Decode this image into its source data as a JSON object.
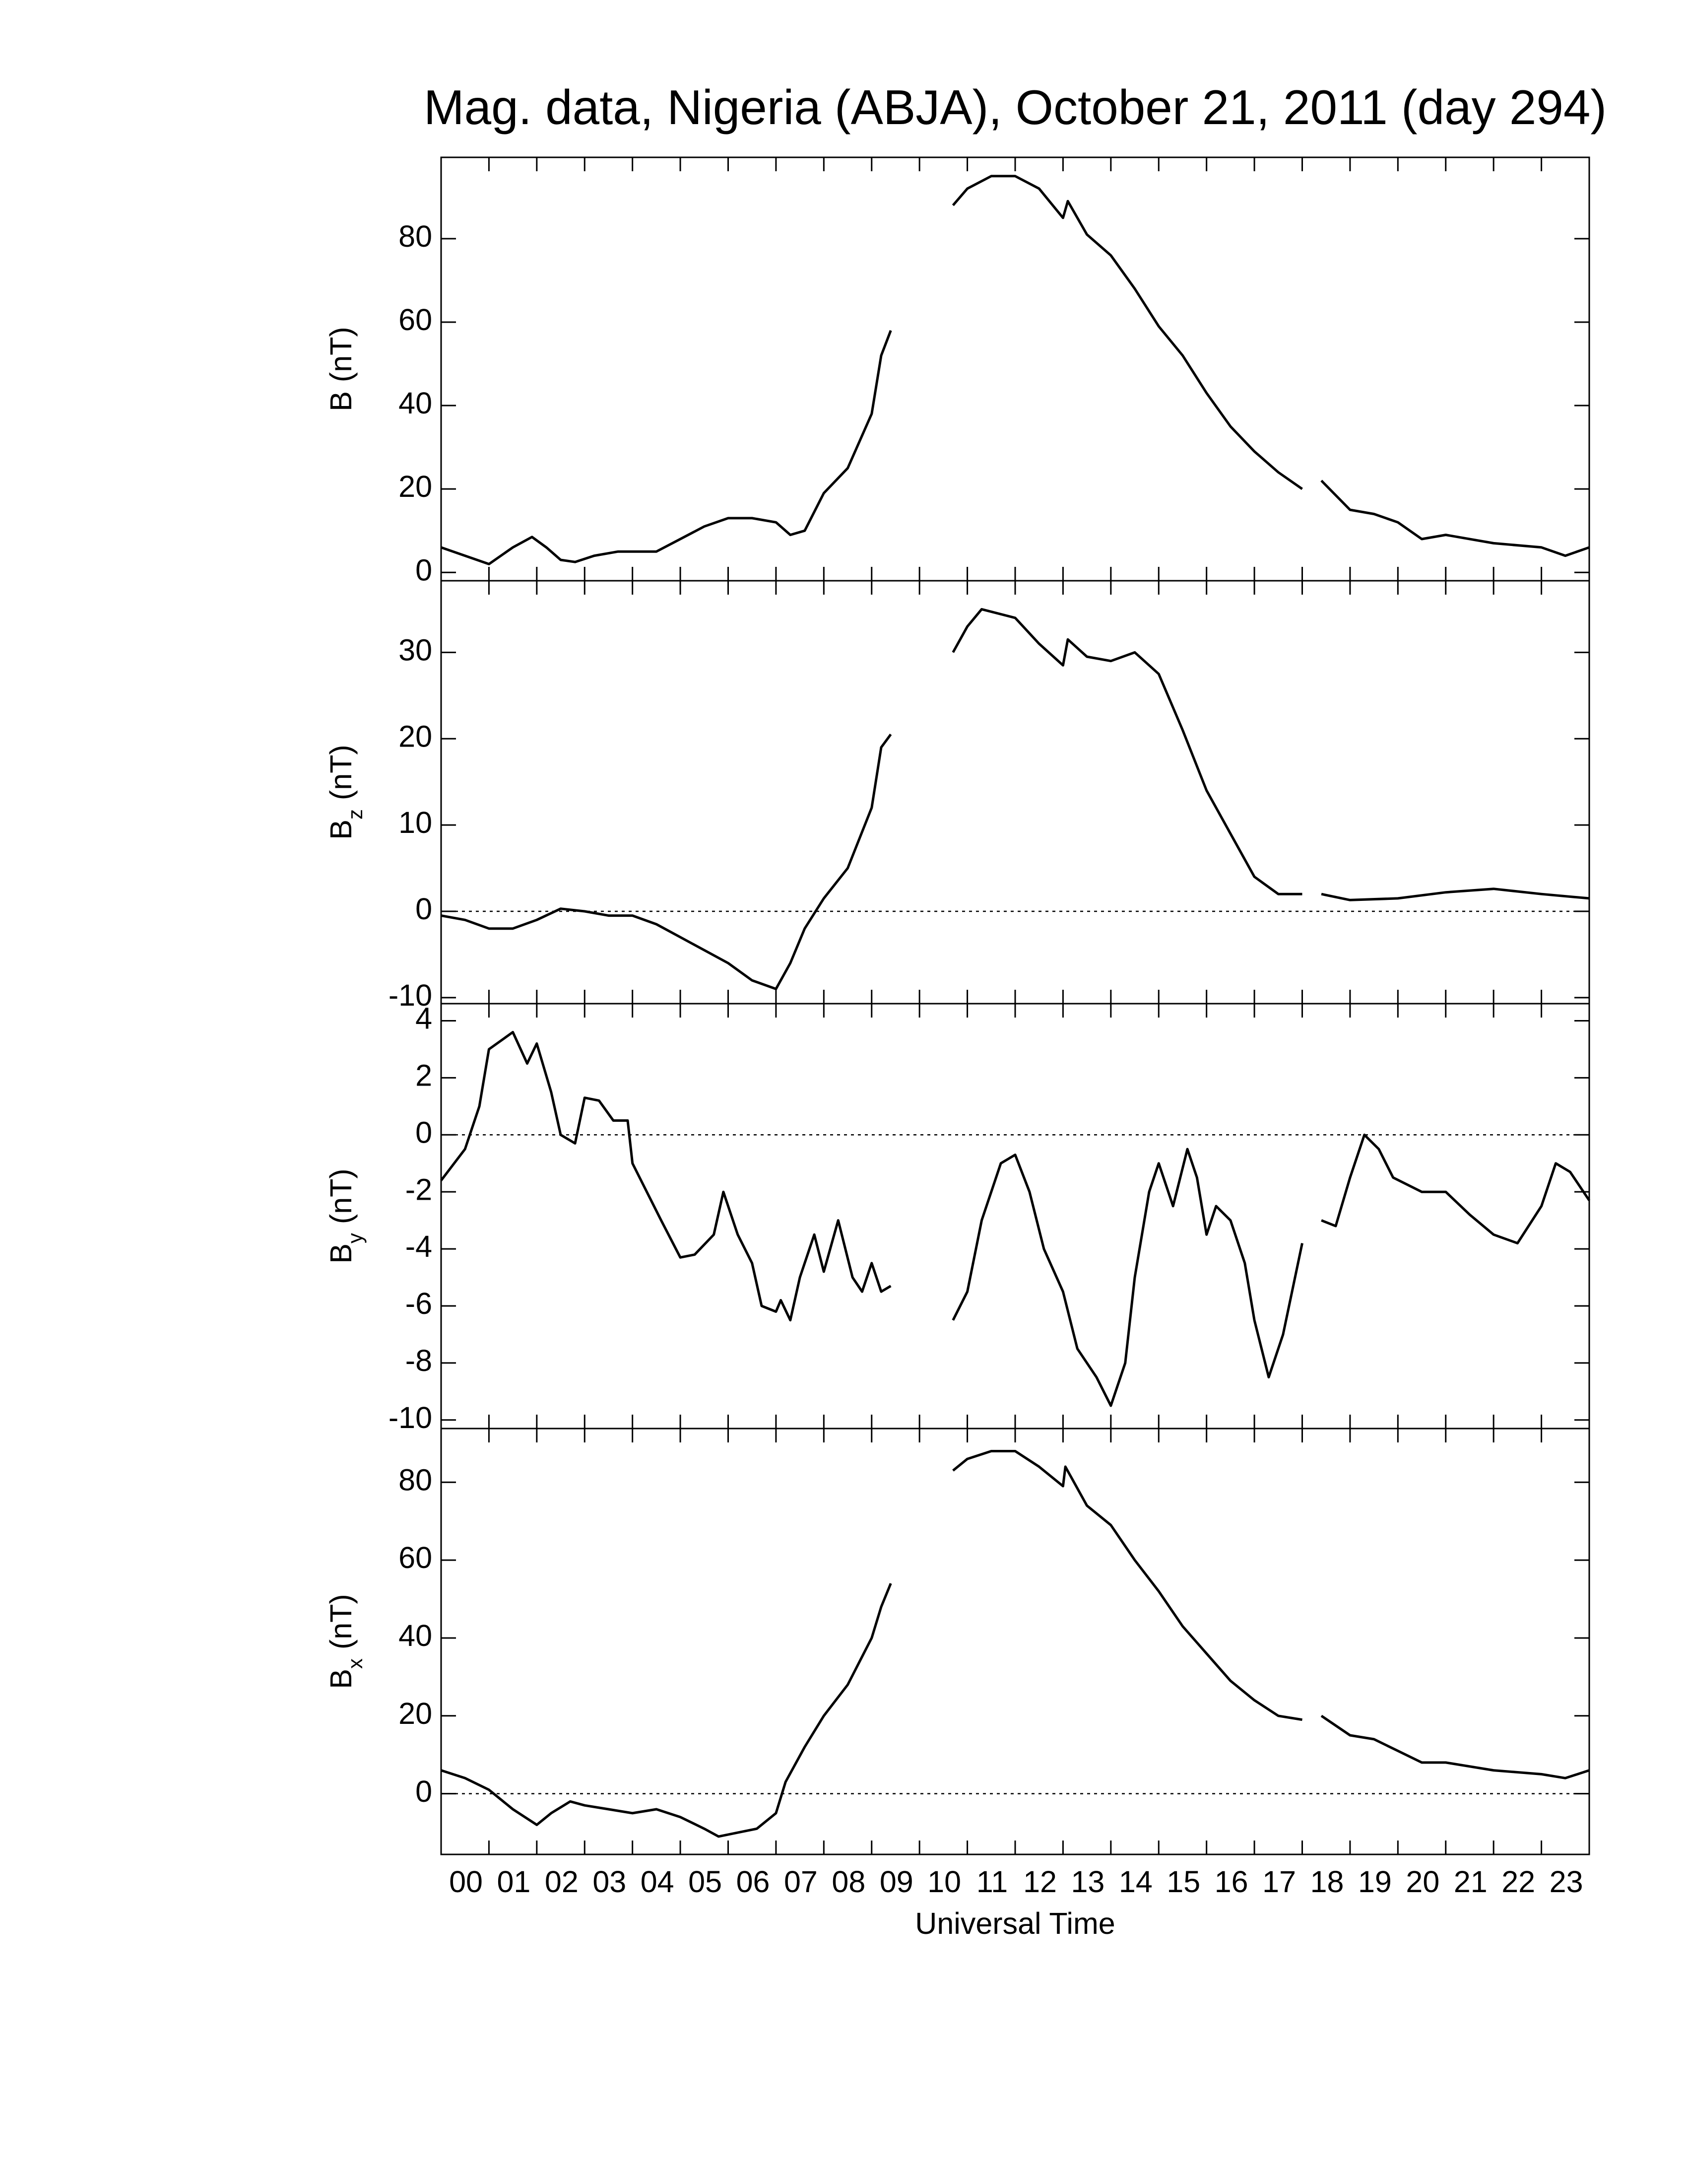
{
  "title": "Mag. data, Nigeria (ABJA), October 21, 2011 (day 294)",
  "xlabel": "Universal Time",
  "chart_data": [
    {
      "type": "line",
      "ylabel": {
        "base": "B",
        "sub": null,
        "unit": "(nT)"
      },
      "xlim": [
        0,
        24
      ],
      "xticks": [
        0,
        1,
        2,
        3,
        4,
        5,
        6,
        7,
        8,
        9,
        10,
        11,
        12,
        13,
        14,
        15,
        16,
        17,
        18,
        19,
        20,
        21,
        22,
        23
      ],
      "ylim": [
        -2,
        99.5
      ],
      "yticks": [
        0,
        20,
        40,
        60,
        80
      ],
      "zero_line": false,
      "color": "#000000",
      "x": [
        0,
        0.5,
        1,
        1.5,
        1.9,
        2.2,
        2.5,
        2.8,
        3.2,
        3.7,
        4,
        4.5,
        5,
        5.5,
        6,
        6.5,
        7,
        7.3,
        7.6,
        8,
        8.5,
        9,
        9.2,
        9.4,
        10,
        10.7,
        11,
        11.5,
        12,
        12.5,
        13,
        13.1,
        13.5,
        14,
        14.5,
        15,
        15.5,
        16,
        16.5,
        17,
        17.5,
        18,
        18.3,
        18.4,
        19,
        19.5,
        20,
        20.5,
        21,
        22,
        23,
        23.5,
        24
      ],
      "values": [
        6,
        4,
        2,
        6,
        8.5,
        6,
        3,
        2.5,
        4,
        5,
        5,
        5,
        8,
        11,
        13,
        13,
        12,
        9,
        10,
        19,
        25,
        38,
        52,
        58,
        null,
        88,
        92,
        95,
        95,
        92,
        85,
        89,
        81,
        76,
        68,
        59,
        52,
        43,
        35,
        29,
        24,
        20,
        null,
        22,
        15,
        14,
        12,
        8,
        9,
        7,
        6,
        4,
        6
      ]
    },
    {
      "type": "line",
      "ylabel": {
        "base": "B",
        "sub": "z",
        "unit": "(nT)"
      },
      "xlim": [
        0,
        24
      ],
      "xticks": [
        0,
        1,
        2,
        3,
        4,
        5,
        6,
        7,
        8,
        9,
        10,
        11,
        12,
        13,
        14,
        15,
        16,
        17,
        18,
        19,
        20,
        21,
        22,
        23
      ],
      "ylim": [
        -10.7,
        38.3
      ],
      "yticks": [
        -10,
        0,
        10,
        20,
        30
      ],
      "zero_line": true,
      "color": "#000000",
      "x": [
        0,
        0.5,
        1,
        1.5,
        2,
        2.5,
        3,
        3.5,
        4,
        4.5,
        5,
        5.5,
        6,
        6.5,
        7,
        7.3,
        7.6,
        8,
        8.5,
        9,
        9.2,
        9.4,
        10,
        10.7,
        11,
        11.3,
        12,
        12.5,
        13,
        13.1,
        13.5,
        14,
        14.5,
        15,
        15.5,
        16,
        16.5,
        17,
        17.5,
        18,
        18.3,
        18.4,
        19,
        20,
        21,
        22,
        23,
        24
      ],
      "values": [
        -0.5,
        -1,
        -2,
        -2,
        -1,
        0.3,
        0,
        -0.5,
        -0.5,
        -1.5,
        -3,
        -4.5,
        -6,
        -8,
        -9,
        -6,
        -2,
        1.5,
        5,
        12,
        19,
        20.5,
        null,
        30,
        33,
        35,
        34,
        31,
        28.5,
        31.5,
        29.5,
        29,
        30,
        27.5,
        21,
        14,
        9,
        4,
        2,
        2,
        null,
        2,
        1.3,
        1.5,
        2.2,
        2.6,
        2,
        1.5
      ]
    },
    {
      "type": "line",
      "ylabel": {
        "base": "B",
        "sub": "y",
        "unit": "(nT)"
      },
      "xlim": [
        0,
        24
      ],
      "xticks": [
        0,
        1,
        2,
        3,
        4,
        5,
        6,
        7,
        8,
        9,
        10,
        11,
        12,
        13,
        14,
        15,
        16,
        17,
        18,
        19,
        20,
        21,
        22,
        23
      ],
      "ylim": [
        -10.3,
        4.6
      ],
      "yticks": [
        -10,
        -8,
        -6,
        -4,
        -2,
        0,
        2,
        4
      ],
      "zero_line": true,
      "color": "#000000",
      "x": [
        0,
        0.5,
        0.8,
        1,
        1.5,
        1.8,
        2,
        2.3,
        2.5,
        2.8,
        3,
        3.3,
        3.6,
        3.9,
        4,
        4.3,
        4.6,
        5,
        5.3,
        5.7,
        5.9,
        6.2,
        6.5,
        6.7,
        7,
        7.1,
        7.3,
        7.5,
        7.8,
        8,
        8.3,
        8.6,
        8.8,
        9,
        9.2,
        9.4,
        10,
        10.7,
        11,
        11.3,
        11.7,
        12,
        12.3,
        12.6,
        13,
        13.3,
        13.7,
        14,
        14.3,
        14.5,
        14.8,
        15,
        15.3,
        15.6,
        15.8,
        16,
        16.2,
        16.5,
        16.8,
        17,
        17.3,
        17.6,
        18,
        18.2,
        18.4,
        18.7,
        19,
        19.3,
        19.6,
        19.9,
        20.5,
        21,
        21.5,
        22,
        22.5,
        23,
        23.3,
        23.6,
        24
      ],
      "values": [
        -1.6,
        -0.5,
        1,
        3,
        3.6,
        2.5,
        3.2,
        1.5,
        0,
        -0.3,
        1.3,
        1.2,
        0.5,
        0.5,
        -1,
        -2,
        -3,
        -4.3,
        -4.2,
        -3.5,
        -2,
        -3.5,
        -4.5,
        -6,
        -6.2,
        -5.8,
        -6.5,
        -5,
        -3.5,
        -4.8,
        -3,
        -5,
        -5.5,
        -4.5,
        -5.5,
        -5.3,
        null,
        -6.5,
        -5.5,
        -3,
        -1,
        -0.7,
        -2,
        -4,
        -5.5,
        -7.5,
        -8.5,
        -9.5,
        -8,
        -5,
        -2,
        -1,
        -2.5,
        -0.5,
        -1.5,
        -3.5,
        -2.5,
        -3,
        -4.5,
        -6.5,
        -8.5,
        -7,
        -3.8,
        null,
        -3,
        -3.2,
        -1.5,
        0,
        -0.5,
        -1.5,
        -2,
        -2,
        -2.8,
        -3.5,
        -3.8,
        -2.5,
        -1,
        -1.3,
        -2.3
      ]
    },
    {
      "type": "line",
      "ylabel": {
        "base": "B",
        "sub": "x",
        "unit": "(nT)"
      },
      "xlim": [
        0,
        24
      ],
      "xticks": [
        {
          "value": 0,
          "label": "00"
        },
        {
          "value": 1,
          "label": "01"
        },
        {
          "value": 2,
          "label": "02"
        },
        {
          "value": 3,
          "label": "03"
        },
        {
          "value": 4,
          "label": "04"
        },
        {
          "value": 5,
          "label": "05"
        },
        {
          "value": 6,
          "label": "06"
        },
        {
          "value": 7,
          "label": "07"
        },
        {
          "value": 8,
          "label": "08"
        },
        {
          "value": 9,
          "label": "09"
        },
        {
          "value": 10,
          "label": "10"
        },
        {
          "value": 11,
          "label": "11"
        },
        {
          "value": 12,
          "label": "12"
        },
        {
          "value": 13,
          "label": "13"
        },
        {
          "value": 14,
          "label": "14"
        },
        {
          "value": 15,
          "label": "15"
        },
        {
          "value": 16,
          "label": "16"
        },
        {
          "value": 17,
          "label": "17"
        },
        {
          "value": 18,
          "label": "18"
        },
        {
          "value": 19,
          "label": "19"
        },
        {
          "value": 20,
          "label": "20"
        },
        {
          "value": 21,
          "label": "21"
        },
        {
          "value": 22,
          "label": "22"
        },
        {
          "value": 23,
          "label": "23"
        }
      ],
      "ylim": [
        -15.6,
        93.8
      ],
      "yticks": [
        0,
        20,
        40,
        60,
        80
      ],
      "zero_line": true,
      "color": "#000000",
      "x": [
        0,
        0.5,
        1,
        1.5,
        2,
        2.3,
        2.7,
        3,
        3.5,
        4,
        4.5,
        5,
        5.5,
        5.8,
        6.2,
        6.6,
        7,
        7.2,
        7.6,
        8,
        8.5,
        9,
        9.2,
        9.4,
        10,
        10.7,
        11,
        11.5,
        12,
        12.5,
        13,
        13.05,
        13.5,
        14,
        14.5,
        15,
        15.5,
        16,
        16.5,
        17,
        17.5,
        18,
        18.3,
        18.4,
        19,
        19.5,
        20,
        20.5,
        21,
        22,
        23,
        23.5,
        24
      ],
      "values": [
        6,
        4,
        1,
        -4,
        -8,
        -5,
        -2,
        -3,
        -4,
        -5,
        -4,
        -6,
        -9,
        -11,
        -10,
        -9,
        -5,
        3,
        12,
        20,
        28,
        40,
        48,
        54,
        null,
        83,
        86,
        88,
        88,
        84,
        79,
        84,
        74,
        69,
        60,
        52,
        43,
        36,
        29,
        24,
        20,
        19,
        null,
        20,
        15,
        14,
        11,
        8,
        8,
        6,
        5,
        4,
        6
      ]
    }
  ]
}
